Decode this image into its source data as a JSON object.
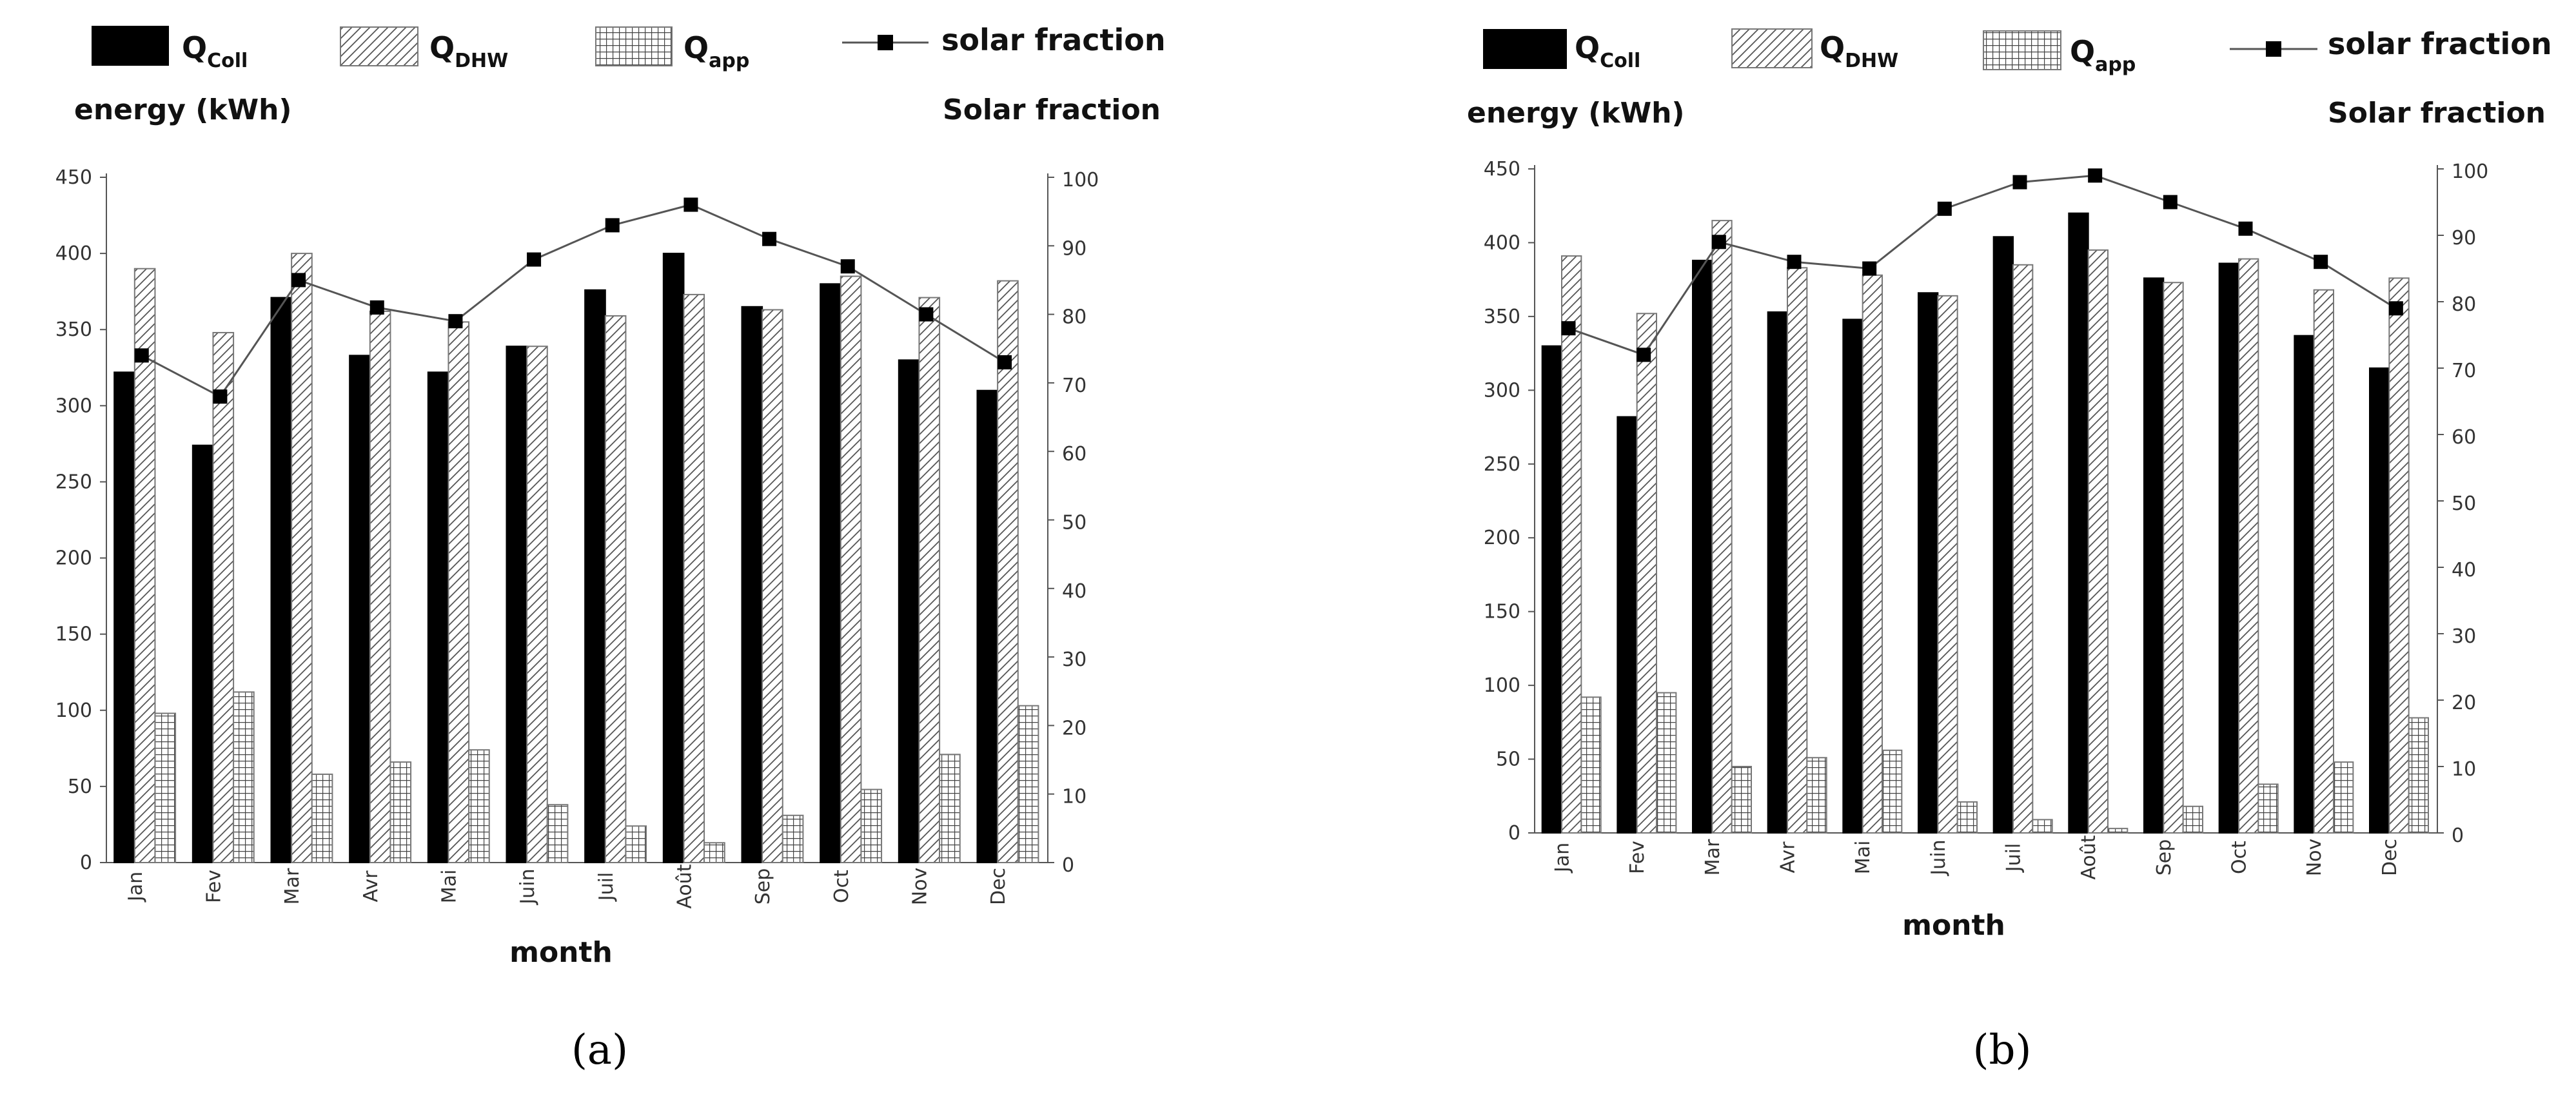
{
  "legend": {
    "coll": {
      "main": "Q",
      "sub": "Coll"
    },
    "dhw": {
      "main": "Q",
      "sub": "DHW"
    },
    "app": {
      "main": "Q",
      "sub": "app"
    },
    "fraction": "solar fraction"
  },
  "colors": {
    "bar_fill": "#000000",
    "line": "#555555",
    "marker": "#000000"
  },
  "chart_data": [
    {
      "panel_label": "(a)",
      "type": "bar",
      "title": "",
      "xlabel": "month",
      "ylabel": "energy (kWh)",
      "y2label": "Solar fraction",
      "ylim": [
        0,
        450
      ],
      "y2lim": [
        0,
        100
      ],
      "yticks": [
        "0",
        "50",
        "100",
        "150",
        "200",
        "250",
        "300",
        "350",
        "400",
        "450"
      ],
      "y2ticks": [
        "0",
        "10",
        "20",
        "30",
        "40",
        "50",
        "60",
        "70",
        "80",
        "90",
        "100"
      ],
      "categories": [
        "Jan",
        "Fev",
        "Mar",
        "Avr",
        "Mai",
        "Juin",
        "Juil",
        "Août",
        "Sep",
        "Oct",
        "Nov",
        "Dec"
      ],
      "series": [
        {
          "name": "Q_Coll",
          "pattern": "solid",
          "axis": "left",
          "values": [
            322,
            274,
            371,
            333,
            322,
            339,
            376,
            400,
            365,
            380,
            330,
            310
          ]
        },
        {
          "name": "Q_DHW",
          "pattern": "diagonal",
          "axis": "left",
          "values": [
            390,
            348,
            400,
            362,
            355,
            339,
            359,
            373,
            363,
            385,
            371,
            382
          ]
        },
        {
          "name": "Q_app",
          "pattern": "grid",
          "axis": "left",
          "values": [
            98,
            112,
            58,
            66,
            74,
            38,
            24,
            13,
            31,
            48,
            71,
            103
          ]
        },
        {
          "name": "solar fraction",
          "type": "line",
          "axis": "right",
          "values": [
            74,
            68,
            85,
            81,
            79,
            88,
            93,
            96,
            91,
            87,
            80,
            73
          ]
        }
      ]
    },
    {
      "panel_label": "(b)",
      "type": "bar",
      "title": "",
      "xlabel": "month",
      "ylabel": "energy (kWh)",
      "y2label": "Solar fraction",
      "ylim": [
        0,
        450
      ],
      "y2lim": [
        0,
        100
      ],
      "yticks": [
        "0",
        "50",
        "100",
        "150",
        "200",
        "250",
        "300",
        "350",
        "400",
        "450"
      ],
      "y2ticks": [
        "0",
        "10",
        "20",
        "30",
        "40",
        "50",
        "60",
        "70",
        "80",
        "90",
        "100"
      ],
      "categories": [
        "Jan",
        "Fev",
        "Mar",
        "Avr",
        "Mai",
        "Juin",
        "Juil",
        "Août",
        "Sep",
        "Oct",
        "Nov",
        "Dec"
      ],
      "series": [
        {
          "name": "Q_Coll",
          "pattern": "solid",
          "axis": "left",
          "values": [
            330,
            282,
            388,
            353,
            348,
            366,
            404,
            420,
            376,
            386,
            337,
            315
          ]
        },
        {
          "name": "Q_DHW",
          "pattern": "diagonal",
          "axis": "left",
          "values": [
            391,
            352,
            415,
            383,
            378,
            364,
            385,
            395,
            373,
            389,
            368,
            376
          ]
        },
        {
          "name": "Q_app",
          "pattern": "grid",
          "axis": "left",
          "values": [
            92,
            95,
            45,
            51,
            56,
            21,
            9,
            3,
            18,
            33,
            48,
            78
          ]
        },
        {
          "name": "solar fraction",
          "type": "line",
          "axis": "right",
          "values": [
            76,
            72,
            89,
            86,
            85,
            94,
            98,
            99,
            95,
            91,
            86,
            79
          ]
        }
      ]
    }
  ]
}
